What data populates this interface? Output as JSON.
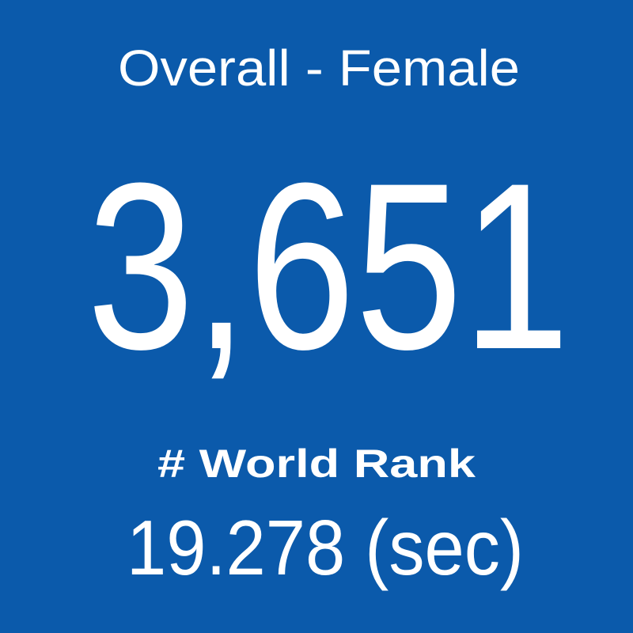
{
  "card": {
    "title": "Overall - Female",
    "rank": "3,651",
    "label": "# World Rank",
    "time": "19.278 (sec)"
  }
}
